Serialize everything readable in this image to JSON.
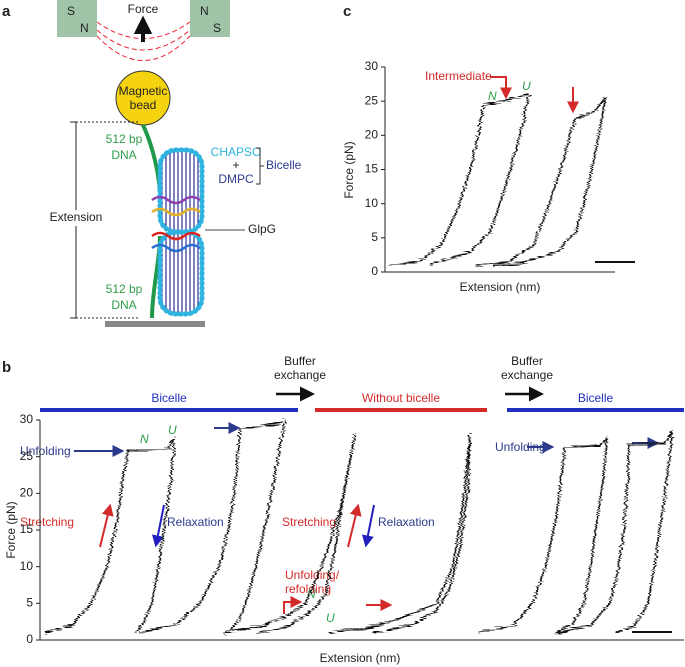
{
  "panel_a": {
    "label": "a",
    "magnet_left": [
      "S",
      "N"
    ],
    "magnet_right": [
      "N",
      "S"
    ],
    "force": "Force",
    "bead": [
      "Magnetic",
      "bead"
    ],
    "dna_top": [
      "512 bp",
      "DNA"
    ],
    "chapso": "CHAPSO",
    "plus": "+",
    "dmpc": "DMPC",
    "bicelle": "Bicelle",
    "extension": "Extension",
    "glpg": "GlpG",
    "dna_bottom": [
      "512 bp",
      "DNA"
    ]
  },
  "panel_b": {
    "label": "b",
    "type": "line",
    "ylabel": "Force (pN)",
    "xlabel": "Extension (nm)",
    "ylim": [
      0,
      30
    ],
    "yticks": [
      0,
      5,
      10,
      15,
      20,
      25,
      30
    ],
    "xlim": [
      0,
      100
    ],
    "conditions": [
      {
        "name": "Bicelle",
        "color": "#1f2fc0"
      },
      {
        "name": "Without bicelle",
        "color": "#d42a2a"
      },
      {
        "name": "Bicelle",
        "color": "#1f2fc0"
      }
    ],
    "buffer_exchange": [
      [
        "Buffer",
        "exchange"
      ],
      [
        "Buffer",
        "exchange"
      ]
    ],
    "annotations": {
      "unfolding_left": "Unfolding",
      "n_left": "N",
      "u_left": "U",
      "stretching_left": "Stretching",
      "relaxation_left": "Relaxation",
      "stretching_mid": "Stretching",
      "relaxation_mid": "Relaxation",
      "unfolding_refolding": [
        "Unfolding/",
        "refolding"
      ],
      "n_mid": "N",
      "u_mid": "U",
      "unfolding_right": "Unfolding"
    },
    "traces": [
      {
        "x": [
          0.8,
          5,
          8,
          10.5,
          12,
          13,
          13.75,
          20,
          21,
          20.5,
          19.5,
          18.5,
          17.5,
          16,
          14.8
        ],
        "y": [
          1,
          2,
          5,
          10,
          16,
          22,
          25.8,
          26,
          27.5,
          22,
          16,
          10,
          5,
          2,
          1
        ]
      },
      {
        "x": [
          15.6,
          21,
          25,
          28,
          29.7,
          30.6,
          31.25,
          37.5,
          38.3,
          37,
          35.5,
          34,
          32.5,
          31,
          29.5
        ],
        "y": [
          1,
          2,
          5,
          10,
          16,
          22,
          28.8,
          29.5,
          30,
          24,
          17,
          11,
          6,
          2.5,
          1
        ]
      },
      {
        "x": [
          28.9,
          35,
          39,
          41.5,
          44,
          47,
          49.2,
          47.5,
          46,
          44.5,
          42.5,
          39,
          34
        ],
        "y": [
          1,
          2,
          3.5,
          5,
          10,
          18,
          28,
          20,
          12,
          6,
          4,
          2,
          1
        ]
      },
      {
        "x": [
          45.3,
          53,
          58,
          62,
          64.5,
          66,
          67.2,
          66.8,
          65.5,
          64,
          62,
          58,
          52
        ],
        "y": [
          1,
          2,
          3.5,
          5,
          10,
          18,
          28,
          20,
          12,
          7,
          4,
          2,
          1
        ]
      },
      {
        "x": [
          68.75,
          74,
          77,
          79,
          80.5,
          81.5,
          82,
          87.5,
          88.6,
          88,
          87,
          86,
          85,
          83,
          80.5
        ],
        "y": [
          1,
          2,
          5,
          10,
          16,
          22,
          26.3,
          26.5,
          27.5,
          22,
          16,
          10,
          5,
          2,
          1
        ]
      },
      {
        "x": [
          81,
          86,
          89,
          90.5,
          91.3,
          91.8,
          92,
          97.5,
          98.75,
          98,
          97,
          96,
          95,
          93,
          90
        ],
        "y": [
          1,
          2,
          5,
          10,
          16,
          22,
          26.6,
          26.8,
          28.3,
          22,
          16,
          10,
          5,
          2,
          1
        ]
      }
    ]
  },
  "panel_c": {
    "label": "c",
    "type": "line",
    "ylabel": "Force (pN)",
    "xlabel": "Extension (nm)",
    "ylim": [
      0,
      30
    ],
    "yticks": [
      0,
      5,
      10,
      15,
      20,
      25,
      30
    ],
    "xlim": [
      0,
      100
    ],
    "annotations": {
      "intermediate": "Intermediate",
      "n": "N",
      "u": "U"
    },
    "traces": [
      {
        "x": [
          2,
          15,
          25,
          32,
          38,
          42,
          44,
          53,
          64,
          60,
          53,
          47,
          38,
          24,
          20
        ],
        "y": [
          1,
          1.5,
          4,
          9,
          15,
          21,
          24.5,
          25,
          26,
          20,
          12,
          6,
          3,
          1.5,
          1
        ]
      },
      {
        "x": [
          40,
          55,
          66,
          72,
          78,
          83,
          85,
          93,
          98,
          95,
          90,
          85,
          77,
          60,
          48
        ],
        "y": [
          1,
          1.5,
          4,
          9,
          15,
          21,
          22.5,
          23.5,
          25.5,
          20,
          12,
          6,
          3,
          1.2,
          1
        ]
      }
    ]
  }
}
